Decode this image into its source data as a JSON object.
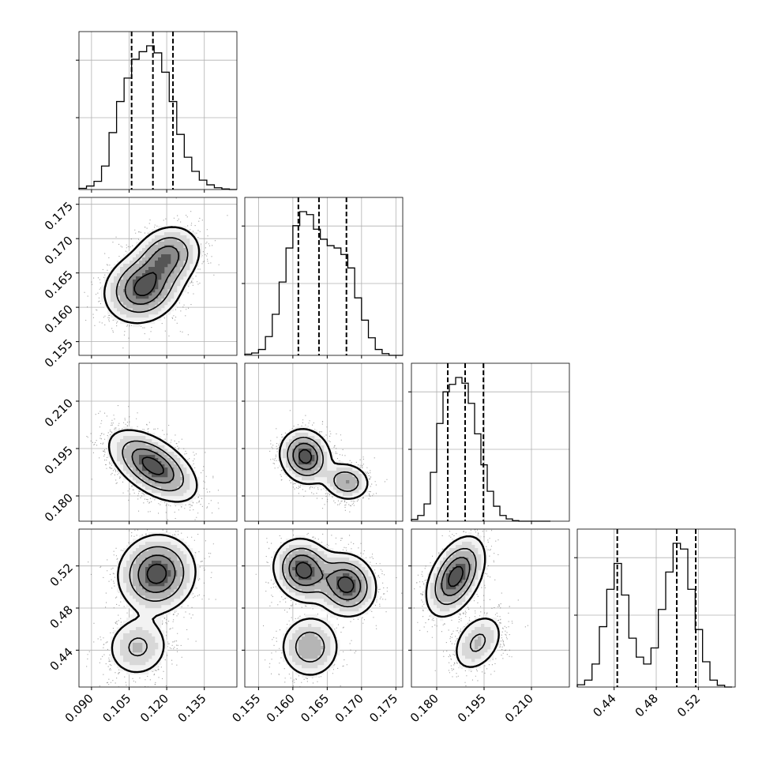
{
  "chart_data": {
    "type": "corner",
    "grid": true,
    "n_params": 4,
    "params": [
      {
        "xlim": [
          0.085,
          0.148
        ],
        "ticks": [
          "0.090",
          "0.105",
          "0.120",
          "0.135"
        ],
        "tick_values": [
          0.09,
          0.105,
          0.12,
          0.135
        ],
        "quantiles": [
          0.106,
          0.1145,
          0.1225
        ],
        "hist": {
          "bins": [
            0.085,
            0.088,
            0.091,
            0.094,
            0.097,
            0.1,
            0.103,
            0.106,
            0.109,
            0.112,
            0.115,
            0.118,
            0.121,
            0.124,
            0.127,
            0.13,
            0.133,
            0.136,
            0.139,
            0.142,
            0.145,
            0.148
          ],
          "counts": [
            2,
            6,
            14,
            40,
            97,
            150,
            190,
            222,
            235,
            245,
            233,
            200,
            150,
            94,
            55,
            31,
            16,
            8,
            3,
            1,
            0
          ]
        }
      },
      {
        "xlim": [
          0.153,
          0.176
        ],
        "ticks": [
          "0.155",
          "0.160",
          "0.165",
          "0.170",
          "0.175"
        ],
        "tick_values": [
          0.155,
          0.16,
          0.165,
          0.17,
          0.175
        ],
        "quantiles": [
          0.1608,
          0.1638,
          0.1678
        ],
        "hist": {
          "bins": [
            0.153,
            0.154,
            0.155,
            0.156,
            0.157,
            0.158,
            0.159,
            0.16,
            0.161,
            0.162,
            0.163,
            0.164,
            0.165,
            0.166,
            0.167,
            0.168,
            0.169,
            0.17,
            0.171,
            0.172,
            0.173,
            0.174,
            0.175,
            0.176
          ],
          "counts": [
            2,
            4,
            10,
            32,
            70,
            125,
            183,
            221,
            245,
            240,
            215,
            198,
            187,
            183,
            172,
            149,
            98,
            60,
            30,
            10,
            3,
            0,
            0
          ]
        }
      },
      {
        "xlim": [
          0.172,
          0.222
        ],
        "ticks": [
          "0.180",
          "0.195",
          "0.210"
        ],
        "tick_values": [
          0.18,
          0.195,
          0.21
        ],
        "quantiles": [
          0.1835,
          0.189,
          0.1948
        ],
        "hist": {
          "bins": [
            0.172,
            0.174,
            0.176,
            0.178,
            0.18,
            0.182,
            0.184,
            0.186,
            0.188,
            0.19,
            0.192,
            0.194,
            0.196,
            0.198,
            0.2,
            0.202,
            0.204,
            0.206,
            0.208,
            0.21,
            0.212,
            0.214,
            0.216
          ],
          "counts": [
            3,
            10,
            30,
            85,
            170,
            225,
            238,
            250,
            240,
            205,
            152,
            98,
            52,
            26,
            10,
            4,
            1,
            0,
            0,
            0,
            0,
            0
          ]
        }
      },
      {
        "xlim": [
          0.405,
          0.555
        ],
        "ticks": [
          "0.44",
          "0.48",
          "0.52"
        ],
        "tick_values": [
          0.44,
          0.48,
          0.52
        ],
        "quantiles": [
          0.443,
          0.4995,
          0.5175
        ],
        "hist": {
          "bins": [
            0.405,
            0.412,
            0.419,
            0.426,
            0.433,
            0.44,
            0.447,
            0.454,
            0.461,
            0.468,
            0.475,
            0.482,
            0.489,
            0.496,
            0.503,
            0.51,
            0.517,
            0.524,
            0.531,
            0.538,
            0.545,
            0.552
          ],
          "counts": [
            4,
            12,
            40,
            105,
            170,
            215,
            160,
            85,
            52,
            40,
            68,
            135,
            200,
            250,
            240,
            170,
            100,
            44,
            12,
            3,
            0
          ]
        }
      }
    ],
    "panels_2d": [
      {
        "x": 0,
        "y": 1,
        "modes": [
          {
            "cx": 0.1105,
            "cy": 0.1628,
            "sx": 0.0075,
            "sy": 0.0025,
            "rho": 0.15,
            "w": 1.0
          },
          {
            "cx": 0.1205,
            "cy": 0.1675,
            "sx": 0.0065,
            "sy": 0.0022,
            "rho": 0.15,
            "w": 0.75
          }
        ]
      },
      {
        "x": 0,
        "y": 2,
        "modes": [
          {
            "cx": 0.1145,
            "cy": 0.1895,
            "sx": 0.0085,
            "sy": 0.0055,
            "rho": -0.55,
            "w": 1.0
          }
        ]
      },
      {
        "x": 1,
        "y": 2,
        "modes": [
          {
            "cx": 0.1618,
            "cy": 0.1925,
            "sx": 0.0018,
            "sy": 0.0042,
            "rho": -0.1,
            "w": 1.0
          },
          {
            "cx": 0.1678,
            "cy": 0.1845,
            "sx": 0.0017,
            "sy": 0.003,
            "rho": -0.1,
            "w": 0.6
          }
        ]
      },
      {
        "x": 0,
        "y": 3,
        "modes": [
          {
            "cx": 0.116,
            "cy": 0.5125,
            "sx": 0.0075,
            "sy": 0.018,
            "rho": 0.05,
            "w": 1.0
          },
          {
            "cx": 0.1085,
            "cy": 0.443,
            "sx": 0.0065,
            "sy": 0.015,
            "rho": 0.05,
            "w": 0.42
          }
        ]
      },
      {
        "x": 1,
        "y": 3,
        "modes": [
          {
            "cx": 0.1615,
            "cy": 0.516,
            "sx": 0.0021,
            "sy": 0.0145,
            "rho": -0.1,
            "w": 0.8
          },
          {
            "cx": 0.1678,
            "cy": 0.502,
            "sx": 0.0021,
            "sy": 0.0145,
            "rho": -0.1,
            "w": 0.8
          },
          {
            "cx": 0.1625,
            "cy": 0.443,
            "sx": 0.0022,
            "sy": 0.015,
            "rho": 0.0,
            "w": 0.45
          }
        ]
      },
      {
        "x": 2,
        "y": 3,
        "modes": [
          {
            "cx": 0.186,
            "cy": 0.51,
            "sx": 0.0045,
            "sy": 0.0185,
            "rho": 0.45,
            "w": 1.0
          },
          {
            "cx": 0.193,
            "cy": 0.447,
            "sx": 0.0042,
            "sy": 0.0145,
            "rho": 0.35,
            "w": 0.42
          }
        ]
      }
    ]
  }
}
